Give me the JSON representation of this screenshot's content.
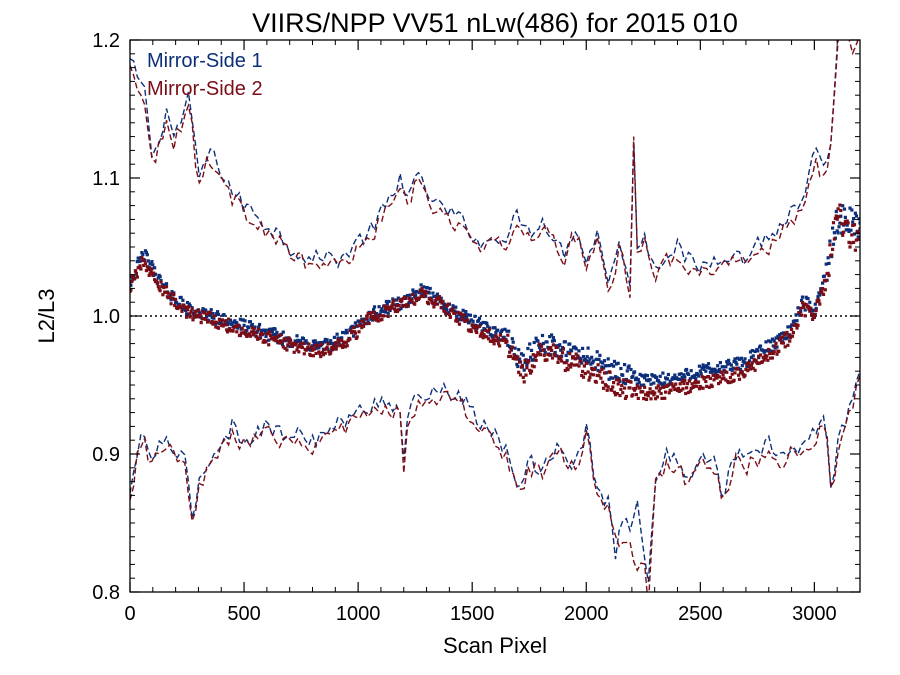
{
  "chart_data": {
    "type": "scatter",
    "title": "VIIRS/NPP VV51 nLw(486) for 2015 010",
    "xlabel": "Scan Pixel",
    "ylabel": "L2/L3",
    "xlim": [
      0,
      3200
    ],
    "ylim": [
      0.8,
      1.2
    ],
    "xticks": [
      0,
      500,
      1000,
      1500,
      2000,
      2500,
      3000
    ],
    "yticks": [
      0.8,
      0.9,
      1.0,
      1.1,
      1.2
    ],
    "ytick_labels": [
      "0.8",
      "0.9",
      "1.0",
      "1.1",
      "1.2"
    ],
    "grid": false,
    "legend_position": "top-left",
    "reference_line": {
      "y": 1.0,
      "style": "dotted",
      "color": "#000000"
    },
    "colors": {
      "mirror_side_1": "#0d2f7a",
      "mirror_side_2": "#7a0d16"
    },
    "series": [
      {
        "name": "Mirror-Side 1",
        "color": "#0d2f7a",
        "mean_x": [
          0,
          60,
          150,
          250,
          350,
          450,
          550,
          650,
          750,
          850,
          950,
          1050,
          1150,
          1200,
          1280,
          1350,
          1450,
          1550,
          1650,
          1720,
          1800,
          1900,
          2000,
          2100,
          2200,
          2300,
          2400,
          2500,
          2600,
          2700,
          2800,
          2900,
          2950,
          3000,
          3050,
          3100,
          3150,
          3200
        ],
        "mean_y": [
          1.025,
          1.045,
          1.02,
          1.005,
          1.0,
          0.995,
          0.99,
          0.985,
          0.98,
          0.978,
          0.985,
          1.0,
          1.008,
          1.01,
          1.018,
          1.012,
          1.0,
          0.992,
          0.985,
          0.965,
          0.982,
          0.975,
          0.97,
          0.962,
          0.955,
          0.953,
          0.955,
          0.96,
          0.962,
          0.967,
          0.978,
          0.99,
          1.01,
          1.005,
          1.03,
          1.07,
          1.07,
          1.065
        ],
        "upper_x": [
          0,
          40,
          70,
          100,
          130,
          160,
          190,
          220,
          260,
          300,
          350,
          400,
          450,
          500,
          550,
          600,
          650,
          700,
          750,
          800,
          850,
          900,
          950,
          1000,
          1050,
          1100,
          1150,
          1180,
          1190,
          1200,
          1220,
          1260,
          1300,
          1350,
          1400,
          1450,
          1500,
          1550,
          1600,
          1650,
          1700,
          1750,
          1800,
          1850,
          1900,
          1950,
          2000,
          2050,
          2100,
          2150,
          2200,
          2210,
          2220,
          2250,
          2300,
          2350,
          2400,
          2450,
          2500,
          2550,
          2600,
          2650,
          2700,
          2750,
          2800,
          2850,
          2900,
          2950,
          3000,
          3050,
          3080,
          3100,
          3130,
          3160,
          3200
        ],
        "upper_y": [
          1.185,
          1.17,
          1.16,
          1.11,
          1.13,
          1.15,
          1.13,
          1.14,
          1.16,
          1.1,
          1.12,
          1.105,
          1.09,
          1.08,
          1.075,
          1.065,
          1.06,
          1.05,
          1.045,
          1.04,
          1.045,
          1.04,
          1.045,
          1.055,
          1.06,
          1.075,
          1.085,
          1.09,
          1.12,
          1.095,
          1.09,
          1.1,
          1.09,
          1.08,
          1.075,
          1.07,
          1.06,
          1.05,
          1.06,
          1.055,
          1.075,
          1.06,
          1.07,
          1.06,
          1.045,
          1.065,
          1.04,
          1.06,
          1.025,
          1.055,
          1.01,
          1.16,
          1.05,
          1.06,
          1.035,
          1.045,
          1.05,
          1.04,
          1.035,
          1.04,
          1.045,
          1.045,
          1.04,
          1.055,
          1.055,
          1.065,
          1.075,
          1.08,
          1.12,
          1.1,
          1.14,
          1.2,
          1.21,
          1.2,
          1.22
        ],
        "lower_x": [
          0,
          30,
          60,
          90,
          120,
          160,
          200,
          240,
          260,
          270,
          300,
          350,
          400,
          450,
          500,
          550,
          600,
          650,
          700,
          750,
          800,
          850,
          900,
          950,
          1000,
          1050,
          1100,
          1150,
          1180,
          1200,
          1220,
          1260,
          1300,
          1350,
          1400,
          1450,
          1500,
          1550,
          1600,
          1650,
          1700,
          1720,
          1750,
          1800,
          1850,
          1900,
          1950,
          2000,
          2050,
          2100,
          2130,
          2150,
          2200,
          2220,
          2250,
          2270,
          2300,
          2350,
          2400,
          2450,
          2500,
          2550,
          2600,
          2650,
          2700,
          2750,
          2800,
          2850,
          2900,
          2950,
          3000,
          3050,
          3080,
          3100,
          3150,
          3200
        ],
        "lower_y": [
          0.87,
          0.9,
          0.915,
          0.895,
          0.905,
          0.91,
          0.9,
          0.895,
          0.87,
          0.85,
          0.88,
          0.895,
          0.91,
          0.92,
          0.91,
          0.915,
          0.92,
          0.915,
          0.915,
          0.915,
          0.91,
          0.915,
          0.92,
          0.925,
          0.93,
          0.935,
          0.94,
          0.935,
          0.94,
          0.89,
          0.935,
          0.94,
          0.945,
          0.945,
          0.945,
          0.94,
          0.93,
          0.92,
          0.915,
          0.9,
          0.88,
          0.87,
          0.895,
          0.89,
          0.9,
          0.905,
          0.89,
          0.92,
          0.875,
          0.865,
          0.82,
          0.86,
          0.84,
          0.87,
          0.83,
          0.8,
          0.88,
          0.9,
          0.895,
          0.885,
          0.895,
          0.9,
          0.87,
          0.9,
          0.895,
          0.9,
          0.91,
          0.895,
          0.905,
          0.905,
          0.915,
          0.925,
          0.865,
          0.91,
          0.93,
          0.96
        ]
      },
      {
        "name": "Mirror-Side 2",
        "color": "#7a0d16",
        "mean_x": [
          0,
          60,
          150,
          250,
          350,
          450,
          550,
          650,
          750,
          850,
          950,
          1050,
          1150,
          1200,
          1280,
          1350,
          1450,
          1550,
          1650,
          1720,
          1800,
          1900,
          2000,
          2100,
          2200,
          2300,
          2400,
          2500,
          2600,
          2700,
          2800,
          2900,
          2950,
          3000,
          3050,
          3100,
          3150,
          3200
        ],
        "mean_y": [
          1.02,
          1.04,
          1.018,
          1.003,
          0.998,
          0.992,
          0.987,
          0.982,
          0.977,
          0.975,
          0.982,
          0.998,
          1.006,
          1.008,
          1.016,
          1.01,
          0.997,
          0.988,
          0.98,
          0.958,
          0.976,
          0.968,
          0.962,
          0.953,
          0.945,
          0.944,
          0.947,
          0.952,
          0.955,
          0.96,
          0.972,
          0.986,
          1.006,
          1.0,
          1.025,
          1.075,
          1.06,
          1.055
        ],
        "upper_x": [
          0,
          40,
          70,
          100,
          130,
          160,
          190,
          220,
          260,
          300,
          350,
          400,
          450,
          500,
          550,
          600,
          650,
          700,
          750,
          800,
          850,
          900,
          950,
          1000,
          1050,
          1100,
          1150,
          1180,
          1190,
          1200,
          1220,
          1260,
          1300,
          1350,
          1400,
          1450,
          1500,
          1550,
          1600,
          1650,
          1700,
          1750,
          1800,
          1850,
          1900,
          1950,
          2000,
          2050,
          2100,
          2150,
          2200,
          2210,
          2220,
          2250,
          2300,
          2350,
          2400,
          2450,
          2500,
          2550,
          2600,
          2650,
          2700,
          2750,
          2800,
          2850,
          2900,
          2950,
          3000,
          3050,
          3080,
          3100,
          3130,
          3160,
          3200
        ],
        "upper_y": [
          1.18,
          1.165,
          1.155,
          1.105,
          1.125,
          1.145,
          1.125,
          1.135,
          1.155,
          1.095,
          1.115,
          1.1,
          1.085,
          1.075,
          1.07,
          1.06,
          1.055,
          1.045,
          1.04,
          1.035,
          1.04,
          1.035,
          1.04,
          1.05,
          1.055,
          1.07,
          1.08,
          1.085,
          1.115,
          1.09,
          1.085,
          1.095,
          1.085,
          1.075,
          1.07,
          1.065,
          1.055,
          1.045,
          1.055,
          1.05,
          1.07,
          1.055,
          1.065,
          1.055,
          1.04,
          1.06,
          1.035,
          1.055,
          1.02,
          1.05,
          1.0,
          1.16,
          1.045,
          1.055,
          1.03,
          1.04,
          1.045,
          1.035,
          1.03,
          1.035,
          1.04,
          1.04,
          1.035,
          1.05,
          1.05,
          1.06,
          1.07,
          1.075,
          1.115,
          1.095,
          1.135,
          1.2,
          1.21,
          1.19,
          1.21
        ],
        "lower_x": [
          0,
          30,
          60,
          90,
          120,
          160,
          200,
          240,
          260,
          270,
          300,
          350,
          400,
          450,
          500,
          550,
          600,
          650,
          700,
          750,
          800,
          850,
          900,
          950,
          1000,
          1050,
          1100,
          1150,
          1180,
          1200,
          1220,
          1260,
          1300,
          1350,
          1400,
          1450,
          1500,
          1550,
          1600,
          1650,
          1700,
          1720,
          1750,
          1800,
          1850,
          1900,
          1950,
          2000,
          2050,
          2100,
          2130,
          2150,
          2200,
          2220,
          2250,
          2270,
          2300,
          2350,
          2400,
          2450,
          2500,
          2550,
          2600,
          2650,
          2700,
          2750,
          2800,
          2850,
          2900,
          2950,
          3000,
          3050,
          3080,
          3100,
          3150,
          3200
        ],
        "lower_y": [
          0.865,
          0.895,
          0.91,
          0.89,
          0.9,
          0.905,
          0.895,
          0.89,
          0.865,
          0.845,
          0.875,
          0.89,
          0.905,
          0.915,
          0.905,
          0.91,
          0.915,
          0.91,
          0.91,
          0.91,
          0.905,
          0.91,
          0.915,
          0.92,
          0.925,
          0.93,
          0.935,
          0.93,
          0.935,
          0.885,
          0.93,
          0.935,
          0.94,
          0.94,
          0.94,
          0.935,
          0.925,
          0.915,
          0.91,
          0.895,
          0.875,
          0.865,
          0.89,
          0.885,
          0.895,
          0.9,
          0.885,
          0.915,
          0.87,
          0.86,
          0.845,
          0.83,
          0.835,
          0.81,
          0.825,
          0.79,
          0.875,
          0.895,
          0.89,
          0.88,
          0.89,
          0.895,
          0.865,
          0.895,
          0.89,
          0.895,
          0.905,
          0.89,
          0.9,
          0.9,
          0.91,
          0.92,
          0.86,
          0.905,
          0.925,
          0.955
        ]
      }
    ]
  }
}
